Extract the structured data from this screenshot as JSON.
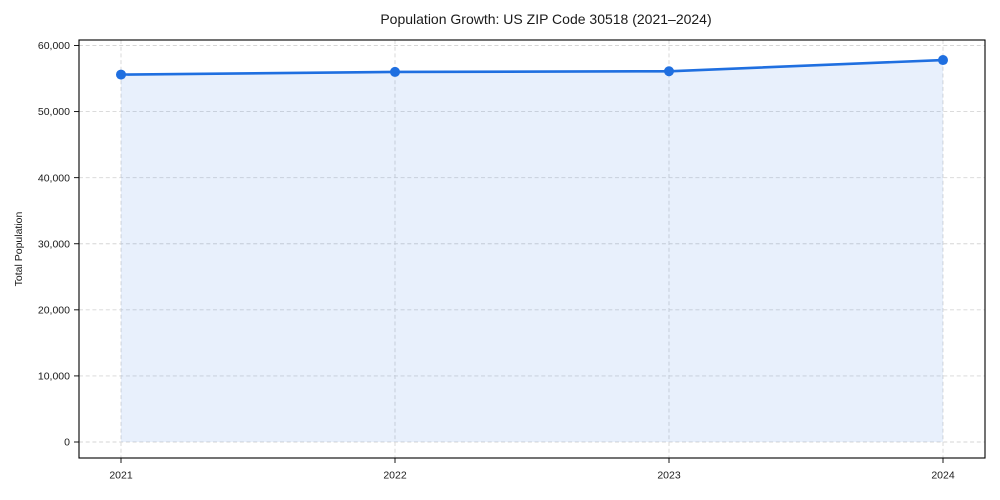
{
  "chart_data": {
    "type": "area",
    "title": "Population Growth: US ZIP Code 30518 (2021–2024)",
    "xlabel": "",
    "ylabel": "Total Population",
    "categories": [
      "2021",
      "2022",
      "2023",
      "2024"
    ],
    "series": [
      {
        "name": "Total Population",
        "values": [
          55600,
          56000,
          56100,
          57800
        ]
      }
    ],
    "yticks": [
      0,
      10000,
      20000,
      30000,
      40000,
      50000,
      60000
    ],
    "ytick_labels": [
      "0",
      "10,000",
      "20,000",
      "30,000",
      "40,000",
      "50,000",
      "60,000"
    ],
    "ylim": [
      0,
      60000
    ],
    "grid": true,
    "grid_style": "dashed",
    "legend_position": "none",
    "colors": {
      "line": "#1f6fe0",
      "marker": "#1f6fe0",
      "fill": "#1f6fe0",
      "fill_opacity": 0.1,
      "grid": "#d6d6d6",
      "spine": "#000000",
      "text": "#1a1a1a",
      "background": "#ffffff"
    }
  }
}
